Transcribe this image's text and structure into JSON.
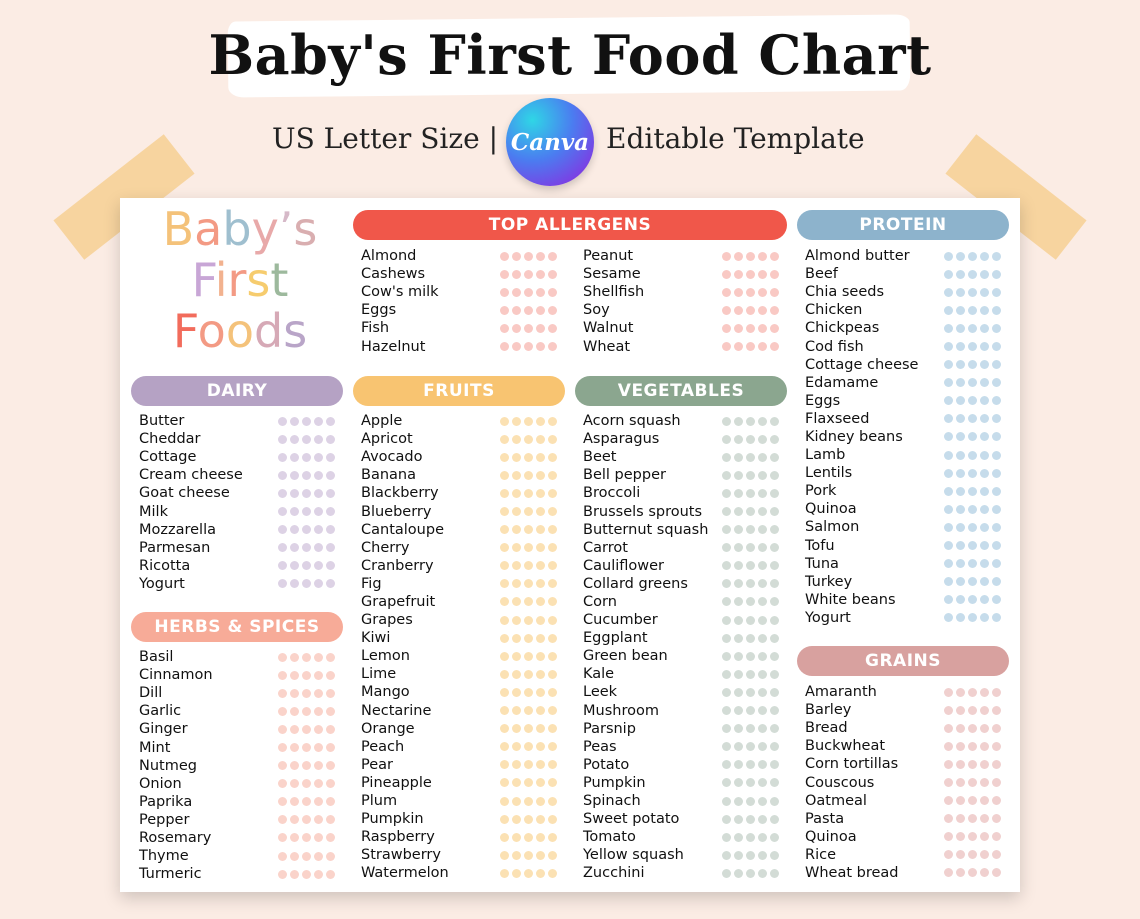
{
  "header": {
    "title": "Baby's First Food Chart",
    "subtitle_left": "US Letter Size |",
    "subtitle_right": "Editable Template",
    "canva_logo_text": "Canva"
  },
  "logo": {
    "lines": [
      {
        "letters": [
          {
            "c": "B",
            "color": "#f4c27a"
          },
          {
            "c": "a",
            "color": "#f39a84"
          },
          {
            "c": "b",
            "color": "#9fbfcf"
          },
          {
            "c": "y",
            "color": "#e8a9a9"
          },
          {
            "c": "’",
            "color": "#d6b9c8"
          },
          {
            "c": "s",
            "color": "#d9aeb0"
          }
        ]
      },
      {
        "letters": [
          {
            "c": "F",
            "color": "#c8a6d6"
          },
          {
            "c": "i",
            "color": "#f2b28f"
          },
          {
            "c": "r",
            "color": "#f39a84"
          },
          {
            "c": "s",
            "color": "#f6cc6e"
          },
          {
            "c": "t",
            "color": "#9db99d"
          }
        ]
      },
      {
        "letters": [
          {
            "c": "F",
            "color": "#f26c5c"
          },
          {
            "c": "o",
            "color": "#f39a84"
          },
          {
            "c": "o",
            "color": "#f4c27a"
          },
          {
            "c": "d",
            "color": "#d6a9b6"
          },
          {
            "c": "s",
            "color": "#b9a5c8"
          }
        ]
      }
    ]
  },
  "sections": {
    "allergens": {
      "title": "TOP ALLERGENS",
      "color": "#f0574a",
      "dot_color": "#f9c9c4",
      "col1": [
        "Almond",
        "Cashews",
        "Cow's milk",
        "Eggs",
        "Fish",
        "Hazelnut"
      ],
      "col2": [
        "Peanut",
        "Sesame",
        "Shellfish",
        "Soy",
        "Walnut",
        "Wheat"
      ]
    },
    "protein": {
      "title": "PROTEIN",
      "color": "#8db3cc",
      "dot_color": "#c6dceb",
      "items": [
        "Almond butter",
        "Beef",
        "Chia seeds",
        "Chicken",
        "Chickpeas",
        "Cod fish",
        "Cottage cheese",
        "Edamame",
        "Eggs",
        "Flaxseed",
        "Kidney beans",
        "Lamb",
        "Lentils",
        "Pork",
        "Quinoa",
        "Salmon",
        "Tofu",
        "Tuna",
        "Turkey",
        "White beans",
        "Yogurt"
      ]
    },
    "dairy": {
      "title": "DAIRY",
      "color": "#b5a2c4",
      "dot_color": "#ddd2e5",
      "items": [
        "Butter",
        "Cheddar",
        "Cottage",
        "Cream cheese",
        "Goat cheese",
        "Milk",
        "Mozzarella",
        "Parmesan",
        "Ricotta",
        "Yogurt"
      ]
    },
    "herbs": {
      "title": "HERBS & SPICES",
      "color": "#f7ab98",
      "dot_color": "#fad3ca",
      "items": [
        "Basil",
        "Cinnamon",
        "Dill",
        "Garlic",
        "Ginger",
        "Mint",
        "Nutmeg",
        "Onion",
        "Paprika",
        "Pepper",
        "Rosemary",
        "Thyme",
        "Turmeric"
      ]
    },
    "fruits": {
      "title": "FRUITS",
      "color": "#f8c471",
      "dot_color": "#fbe1b3",
      "items": [
        "Apple",
        "Apricot",
        "Avocado",
        "Banana",
        "Blackberry",
        "Blueberry",
        "Cantaloupe",
        "Cherry",
        "Cranberry",
        "Fig",
        "Grapefruit",
        "Grapes",
        "Kiwi",
        "Lemon",
        "Lime",
        "Mango",
        "Nectarine",
        "Orange",
        "Peach",
        "Pear",
        "Pineapple",
        "Plum",
        "Pumpkin",
        "Raspberry",
        "Strawberry",
        "Watermelon"
      ]
    },
    "vegetables": {
      "title": "VEGETABLES",
      "color": "#8ba68f",
      "dot_color": "#d3dcd6",
      "items": [
        "Acorn squash",
        "Asparagus",
        "Beet",
        "Bell pepper",
        "Broccoli",
        "Brussels sprouts",
        "Butternut squash",
        "Carrot",
        "Cauliflower",
        "Collard greens",
        "Corn",
        "Cucumber",
        "Eggplant",
        "Green bean",
        "Kale",
        "Leek",
        "Mushroom",
        "Parsnip",
        "Peas",
        "Potato",
        "Pumpkin",
        "Spinach",
        "Sweet potato",
        "Tomato",
        "Yellow squash",
        "Zucchini"
      ]
    },
    "grains": {
      "title": "GRAINS",
      "color": "#d8a19f",
      "dot_color": "#f0d0cf",
      "items": [
        "Amaranth",
        "Barley",
        "Bread",
        "Buckwheat",
        "Corn tortillas",
        "Couscous",
        "Oatmeal",
        "Pasta",
        "Quinoa",
        "Rice",
        "Wheat bread"
      ]
    }
  }
}
